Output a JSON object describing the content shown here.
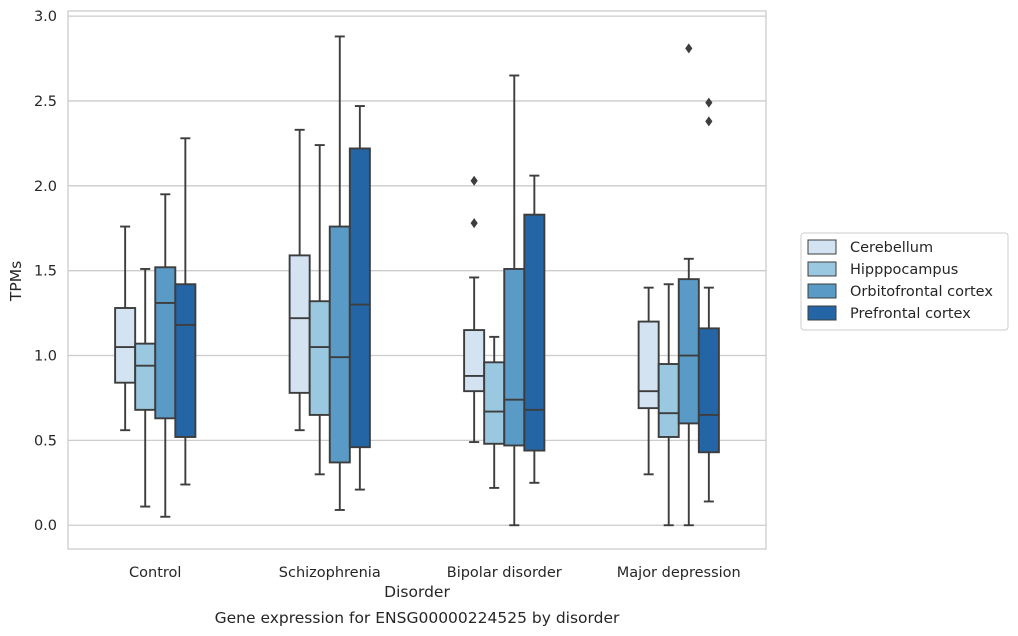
{
  "chart_data": {
    "type": "box",
    "xlabel": "Disorder",
    "ylabel": "TPMs",
    "caption": "Gene expression for ENSG00000224525 by disorder",
    "ylim": [
      -0.14,
      3.03
    ],
    "yticks": [
      "0.0",
      "0.5",
      "1.0",
      "1.5",
      "2.0",
      "2.5",
      "3.0"
    ],
    "grid": "horizontal",
    "legend_position": "right",
    "categories": [
      "Control",
      "Schizophrenia",
      "Bipolar disorder",
      "Major depression"
    ],
    "series": [
      {
        "name": "Cerebellum",
        "color": "#d3e3f2",
        "boxes": [
          {
            "whisker_low": 0.56,
            "q1": 0.84,
            "median": 1.05,
            "q3": 1.28,
            "whisker_high": 1.76,
            "outliers": []
          },
          {
            "whisker_low": 0.56,
            "q1": 0.78,
            "median": 1.22,
            "q3": 1.59,
            "whisker_high": 2.33,
            "outliers": []
          },
          {
            "whisker_low": 0.49,
            "q1": 0.79,
            "median": 0.88,
            "q3": 1.15,
            "whisker_high": 1.46,
            "outliers": [
              1.78,
              2.03
            ]
          },
          {
            "whisker_low": 0.3,
            "q1": 0.69,
            "median": 0.79,
            "q3": 1.2,
            "whisker_high": 1.4,
            "outliers": []
          }
        ]
      },
      {
        "name": "Hipppocampus",
        "color": "#9ac8e0",
        "boxes": [
          {
            "whisker_low": 0.11,
            "q1": 0.68,
            "median": 0.94,
            "q3": 1.07,
            "whisker_high": 1.51,
            "outliers": []
          },
          {
            "whisker_low": 0.3,
            "q1": 0.65,
            "median": 1.05,
            "q3": 1.32,
            "whisker_high": 2.24,
            "outliers": []
          },
          {
            "whisker_low": 0.22,
            "q1": 0.48,
            "median": 0.67,
            "q3": 0.96,
            "whisker_high": 1.11,
            "outliers": []
          },
          {
            "whisker_low": 0.0,
            "q1": 0.52,
            "median": 0.66,
            "q3": 0.95,
            "whisker_high": 1.42,
            "outliers": []
          }
        ]
      },
      {
        "name": "Orbitofrontal cortex",
        "color": "#5a9ac7",
        "boxes": [
          {
            "whisker_low": 0.05,
            "q1": 0.63,
            "median": 1.31,
            "q3": 1.52,
            "whisker_high": 1.95,
            "outliers": []
          },
          {
            "whisker_low": 0.09,
            "q1": 0.37,
            "median": 0.99,
            "q3": 1.76,
            "whisker_high": 2.88,
            "outliers": []
          },
          {
            "whisker_low": 0.0,
            "q1": 0.47,
            "median": 0.74,
            "q3": 1.51,
            "whisker_high": 2.65,
            "outliers": []
          },
          {
            "whisker_low": 0.0,
            "q1": 0.6,
            "median": 1.0,
            "q3": 1.45,
            "whisker_high": 1.57,
            "outliers": [
              2.81
            ]
          }
        ]
      },
      {
        "name": "Prefrontal cortex",
        "color": "#2465a6",
        "boxes": [
          {
            "whisker_low": 0.24,
            "q1": 0.52,
            "median": 1.18,
            "q3": 1.42,
            "whisker_high": 2.28,
            "outliers": []
          },
          {
            "whisker_low": 0.21,
            "q1": 0.46,
            "median": 1.3,
            "q3": 2.22,
            "whisker_high": 2.47,
            "outliers": []
          },
          {
            "whisker_low": 0.25,
            "q1": 0.44,
            "median": 0.68,
            "q3": 1.83,
            "whisker_high": 2.06,
            "outliers": []
          },
          {
            "whisker_low": 0.14,
            "q1": 0.43,
            "median": 0.65,
            "q3": 1.16,
            "whisker_high": 1.4,
            "outliers": [
              2.38,
              2.49
            ]
          }
        ]
      }
    ]
  }
}
